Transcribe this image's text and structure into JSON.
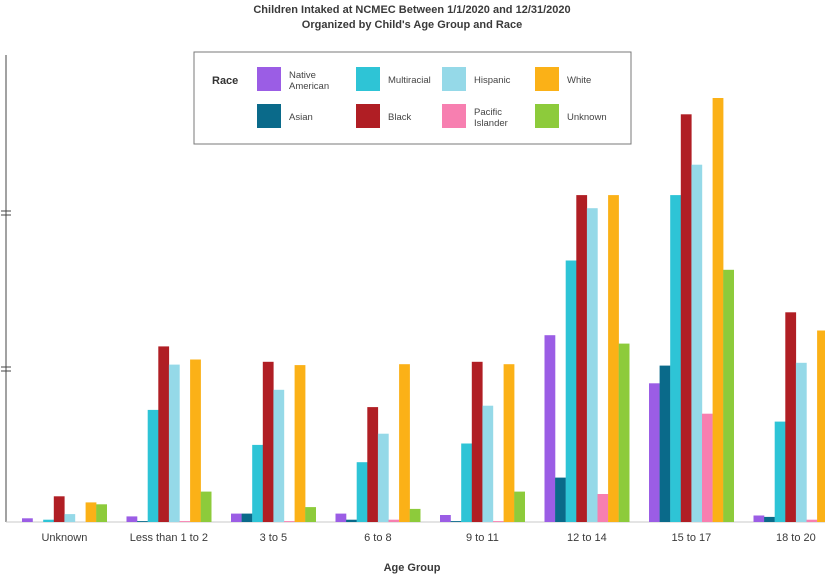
{
  "chart_data": {
    "type": "bar",
    "title": "Children Intaked at NCMEC Between 1/1/2020 and 12/31/2020",
    "subtitle": "Organized by Child's Age Group and Race",
    "xlabel": "Age Group",
    "ylabel": "",
    "ylim": [
      0,
      1000
    ],
    "legend_title": "Race",
    "legend_position": "top-center",
    "categories": [
      "Unknown",
      "Less than 1 to 2",
      "3 to 5",
      "6 to 8",
      "9 to 11",
      "12 to 14",
      "15 to 17",
      "18 to 20"
    ],
    "series": [
      {
        "name": "Native American",
        "label_lines": [
          "Native",
          "American"
        ],
        "color": "#9B5DE5",
        "values": [
          8,
          12,
          18,
          18,
          15,
          400,
          297,
          14
        ]
      },
      {
        "name": "Asian",
        "label_lines": [
          "Asian"
        ],
        "color": "#0A6A8A",
        "values": [
          0,
          2,
          18,
          5,
          2,
          95,
          335,
          11
        ]
      },
      {
        "name": "Multiracial",
        "label_lines": [
          "Multiracial"
        ],
        "color": "#2EC4D6",
        "values": [
          5,
          240,
          165,
          128,
          168,
          560,
          700,
          215
        ]
      },
      {
        "name": "Black",
        "label_lines": [
          "Black"
        ],
        "color": "#B01E24",
        "values": [
          55,
          376,
          343,
          246,
          343,
          700,
          873,
          449
        ]
      },
      {
        "name": "Hispanic",
        "label_lines": [
          "Hispanic"
        ],
        "color": "#95D9E8",
        "values": [
          17,
          337,
          283,
          189,
          249,
          672,
          765,
          341
        ]
      },
      {
        "name": "Pacific Islander",
        "label_lines": [
          "Pacific",
          "Islander"
        ],
        "color": "#F77FB0",
        "values": [
          0,
          2,
          2,
          5,
          2,
          60,
          232,
          5
        ]
      },
      {
        "name": "White",
        "label_lines": [
          "White"
        ],
        "color": "#FBB117",
        "values": [
          42,
          348,
          336,
          338,
          338,
          700,
          908,
          410
        ]
      },
      {
        "name": "Unknown",
        "label_lines": [
          "Unknown"
        ],
        "color": "#8DCB3B",
        "values": [
          38,
          65,
          32,
          28,
          65,
          382,
          540,
          0
        ]
      }
    ]
  }
}
